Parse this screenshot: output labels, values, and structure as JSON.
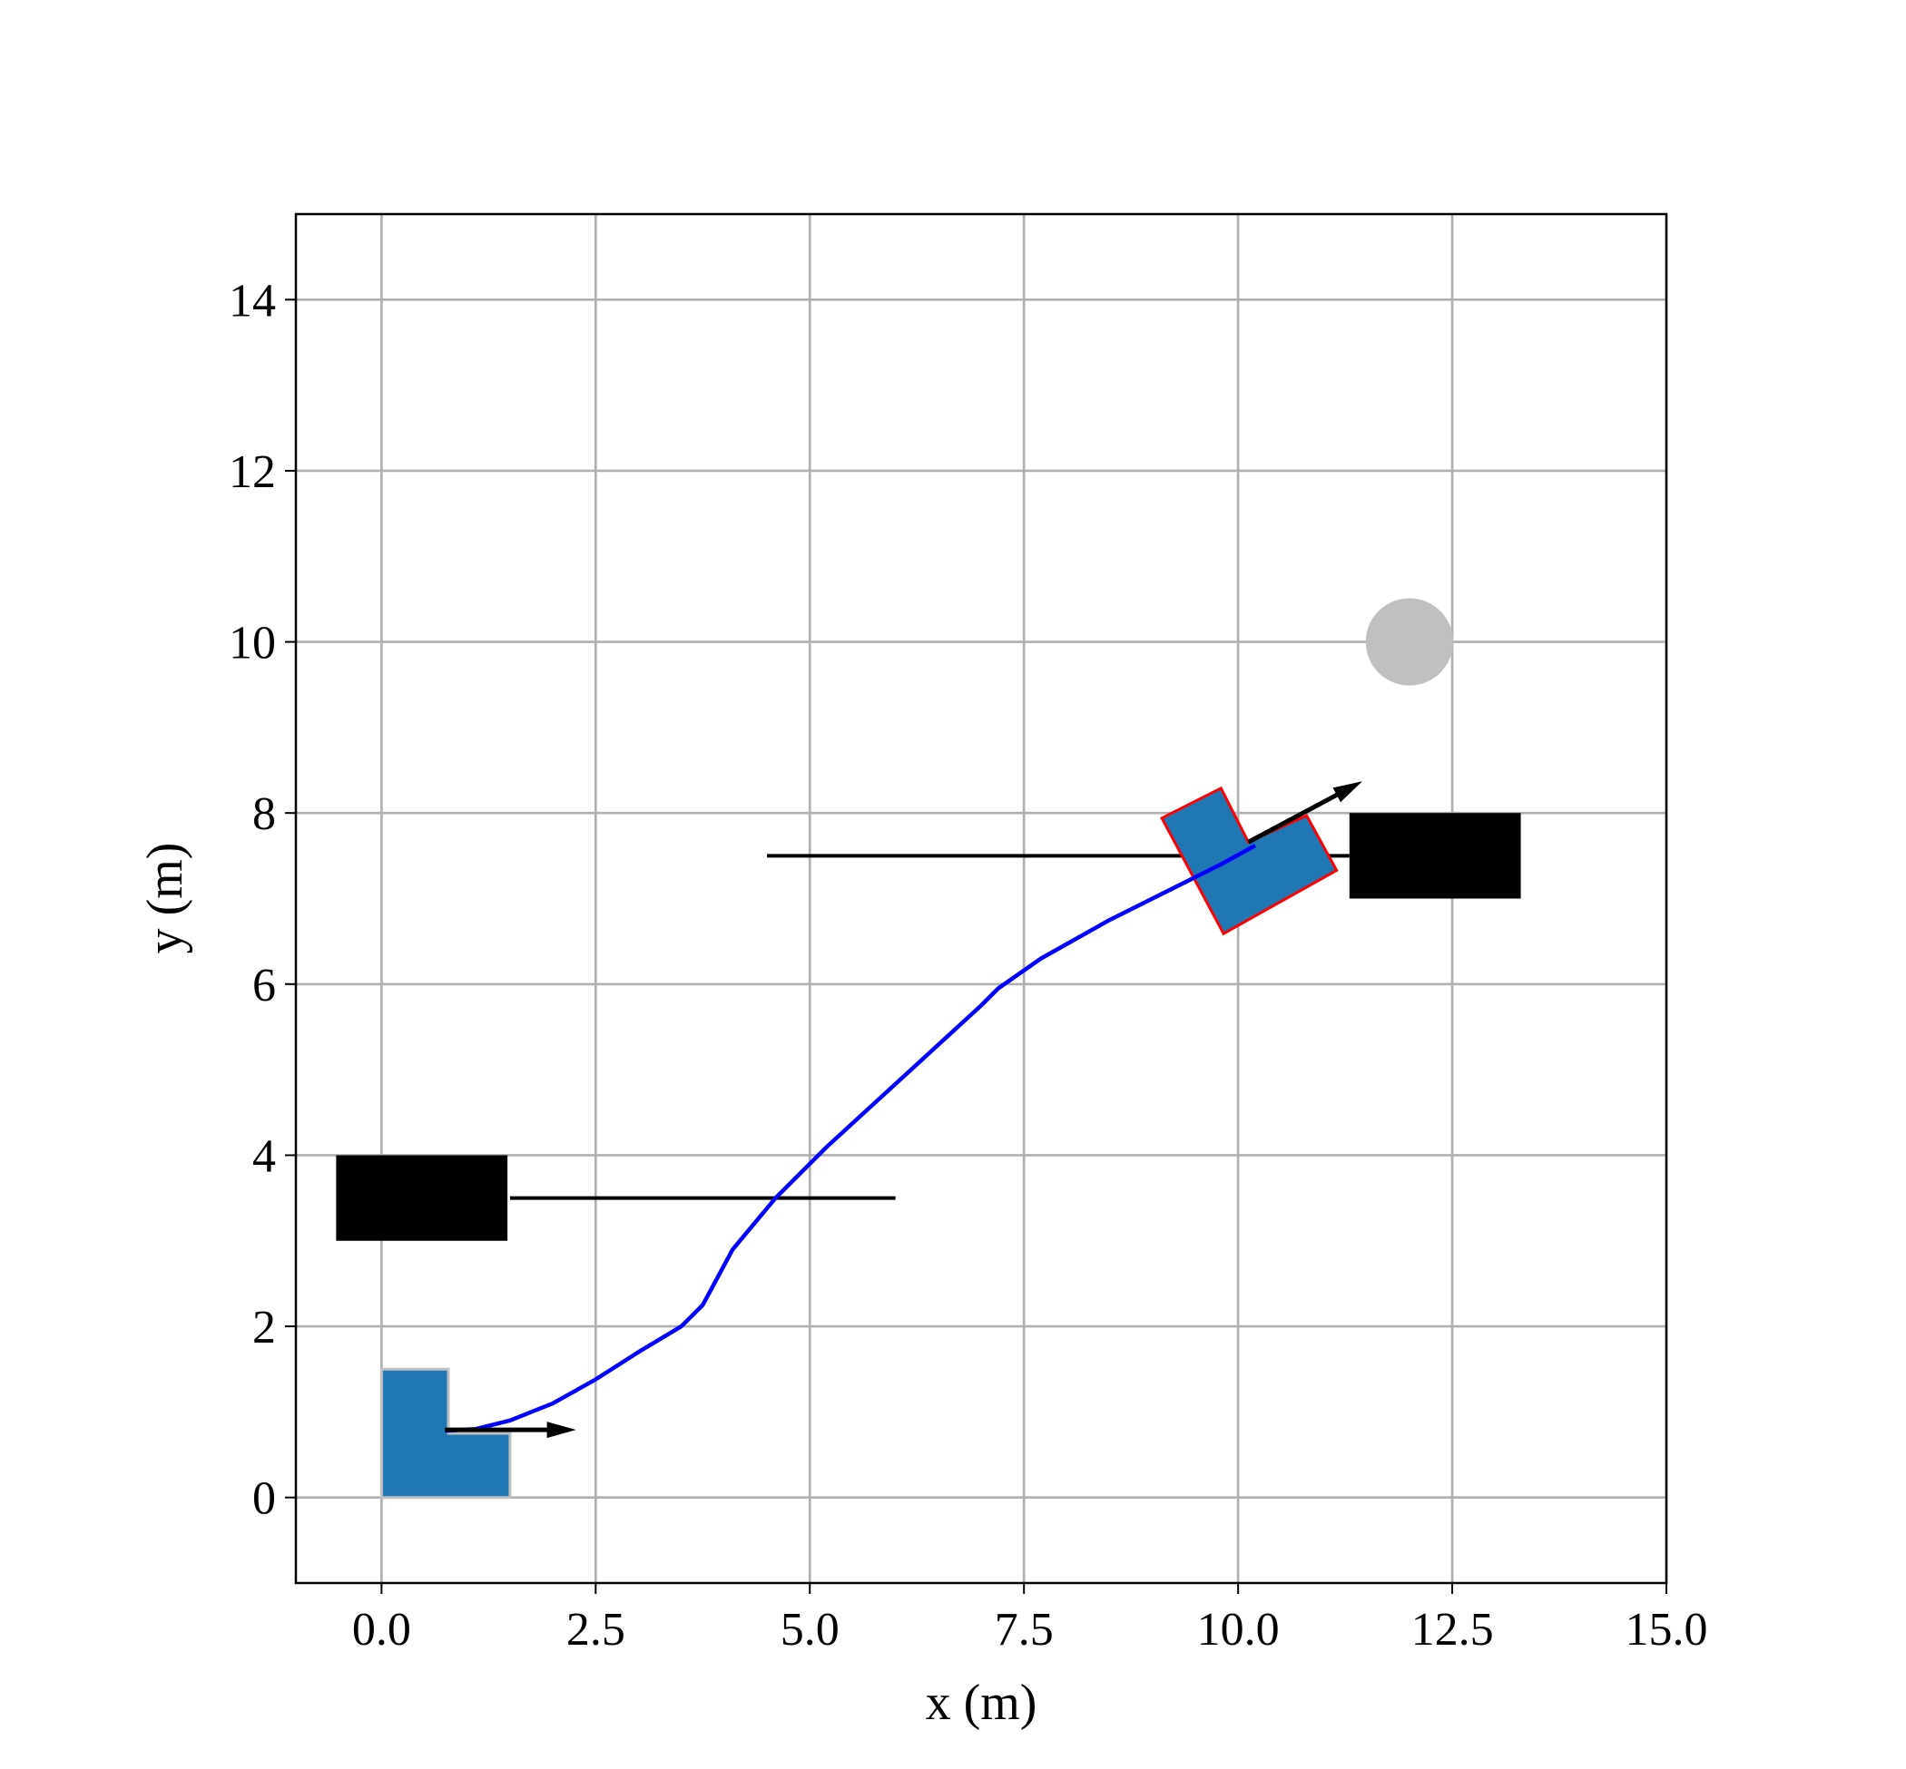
{
  "chart_data": {
    "type": "line",
    "xlabel": "x (m)",
    "ylabel": "y (m)",
    "xlim": [
      -1,
      15
    ],
    "ylim": [
      -1,
      15
    ],
    "xticks": [
      {
        "value": 0,
        "label": "0.0"
      },
      {
        "value": 2.5,
        "label": "2.5"
      },
      {
        "value": 5,
        "label": "5.0"
      },
      {
        "value": 7.5,
        "label": "7.5"
      },
      {
        "value": 10,
        "label": "10.0"
      },
      {
        "value": 12.5,
        "label": "12.5"
      },
      {
        "value": 15,
        "label": "15.0"
      }
    ],
    "yticks": [
      0,
      2,
      4,
      6,
      8,
      10,
      12,
      14
    ],
    "grid": true,
    "series": [
      {
        "color": "#0000ff",
        "x": [
          0.75,
          1.1,
          1.5,
          2.0,
          2.5,
          3.0,
          3.5,
          3.75,
          4.1,
          4.6,
          5.2,
          5.8,
          6.4,
          7.0,
          7.2,
          7.7,
          8.5,
          9.2,
          9.8,
          10.2
        ],
        "values": [
          0.78,
          0.8,
          0.9,
          1.1,
          1.38,
          1.7,
          2.0,
          2.25,
          2.9,
          3.5,
          4.1,
          4.65,
          5.2,
          5.75,
          5.95,
          6.3,
          6.75,
          7.1,
          7.4,
          7.62
        ]
      }
    ],
    "rectangles": [
      {
        "x": -0.53,
        "y": 3,
        "width": 2,
        "height": 1,
        "color": "#000000"
      },
      {
        "x": 11.3,
        "y": 7,
        "width": 2,
        "height": 1,
        "color": "#000000"
      }
    ],
    "segments": [
      {
        "x": [
          1.5,
          6.0
        ],
        "y": [
          3.5,
          3.5
        ],
        "color": "#000000"
      },
      {
        "x": [
          4.5,
          11.3
        ],
        "y": [
          7.5,
          7.5
        ],
        "color": "#000000"
      }
    ],
    "circles": [
      {
        "x": 12,
        "y": 10,
        "r": 0.51,
        "color": "#c0c0c0"
      }
    ],
    "polygons": [
      {
        "x": [
          0,
          1.5,
          1.5,
          0.78,
          0.78,
          0
        ],
        "y": [
          0,
          0,
          0.75,
          0.75,
          1.5,
          1.5
        ],
        "color": "#1f77b4",
        "edgecolor": "#c0c0c0"
      },
      {
        "x": [
          9.11,
          9.8,
          10.12,
          10.8,
          11.15,
          9.83
        ],
        "y": [
          7.94,
          8.29,
          7.66,
          7.97,
          7.33,
          6.59
        ],
        "color": "#1f77b4",
        "edgecolor": "#ff0000"
      }
    ],
    "arrows": [
      {
        "x": [
          0.74,
          2.27
        ],
        "y": [
          0.79,
          0.79
        ],
        "color": "#000000"
      },
      {
        "x": [
          10.12,
          11.45
        ],
        "y": [
          7.66,
          8.37
        ],
        "color": "#000000"
      }
    ]
  }
}
